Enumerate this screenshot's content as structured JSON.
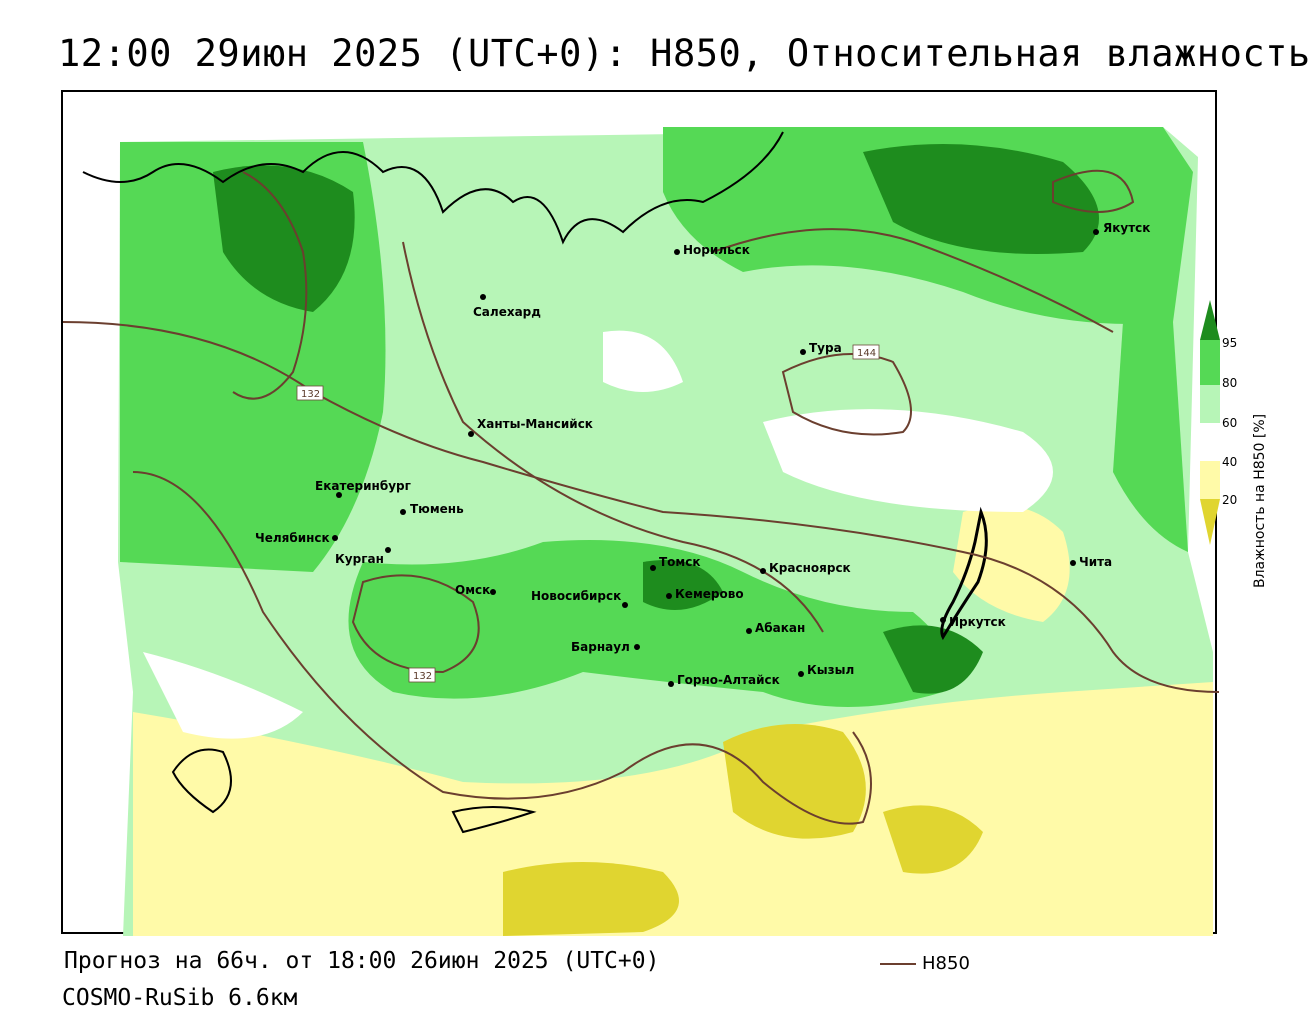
{
  "title": "12:00 29июн 2025 (UTC+0): H850, Относительная влажность",
  "footer": {
    "forecast": "Прогноз на 66ч. от 18:00 26июн 2025 (UTC+0)",
    "model": "COSMO-RuSib 6.6км"
  },
  "legend": {
    "contour_label": "H850",
    "contour_color": "#6b3f2f"
  },
  "colorbar": {
    "title": "Влажность на H850 [%]",
    "ticks": [
      "95",
      "80",
      "60",
      "40",
      "20"
    ],
    "colors": [
      "#1e8c1e",
      "#55d955",
      "#b7f5b7",
      "#ffffff",
      "#fffaa8",
      "#e0d530"
    ]
  },
  "contour_labels": [
    "132",
    "144",
    "132"
  ],
  "cities": [
    "Якутск",
    "Норильск",
    "Салехард",
    "Тура",
    "Ханты-Мансийск",
    "Екатеринбург",
    "Тюмень",
    "Челябинск",
    "Курган",
    "Омск",
    "Новосибирск",
    "Томск",
    "Кемерово",
    "Красноярск",
    "Барнаул",
    "Абакан",
    "Горно-Алтайск",
    "Кызыл",
    "Иркутск",
    "Чита"
  ],
  "colors": {
    "dark_green": "#1e8c1e",
    "green": "#55d955",
    "light_green": "#b7f5b7",
    "light_yellow": "#fffaa8",
    "yellow": "#e0d530",
    "contour": "#6b3f2f"
  }
}
